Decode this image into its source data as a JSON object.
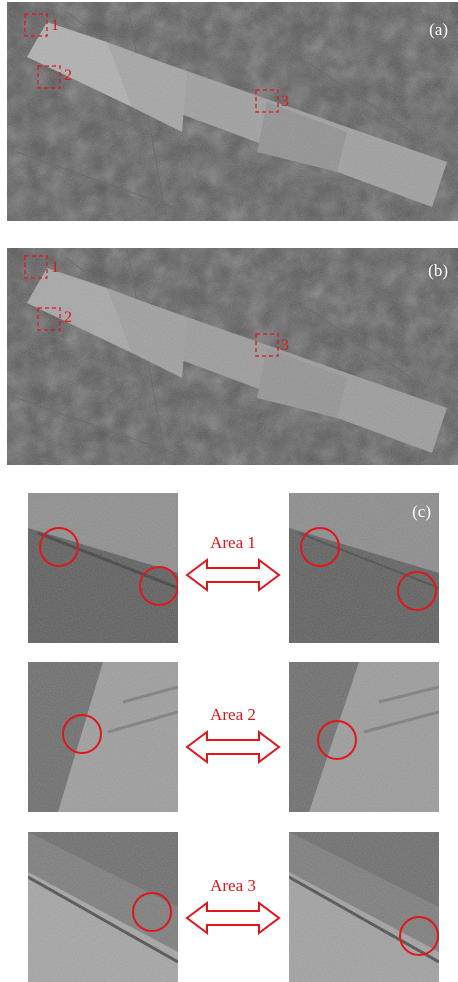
{
  "panels": {
    "a": {
      "label": "(a)"
    },
    "b": {
      "label": "(b)"
    },
    "c": {
      "label": "(c)"
    }
  },
  "roi_numbers": [
    "1",
    "2",
    "3"
  ],
  "areas": [
    {
      "label": "Area 1"
    },
    {
      "label": "Area 2"
    },
    {
      "label": "Area 3"
    }
  ],
  "colors": {
    "annotation": "#e0161b",
    "background_terrain": "#4a4a4a",
    "strip": "#9a9a9a"
  },
  "icons": {
    "arrow": "double-headed-arrow-icon",
    "roi": "dashed-square-icon",
    "highlight": "circle-icon"
  }
}
